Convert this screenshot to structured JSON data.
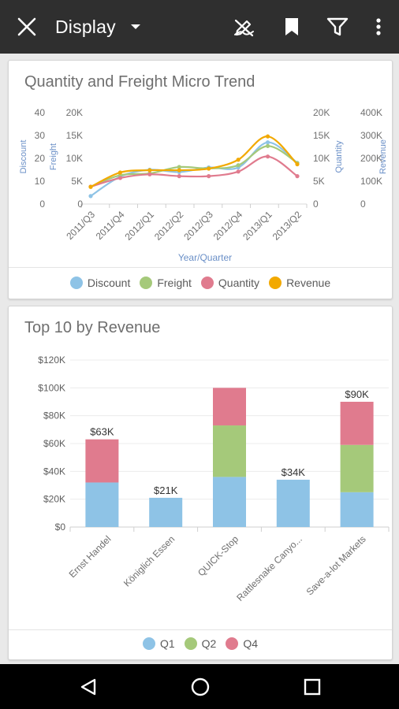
{
  "toolbar": {
    "title": "Display"
  },
  "chart_data": [
    {
      "type": "line",
      "title": "Quantity and Freight Micro Trend",
      "xlabel": "Year/Quarter",
      "categories": [
        "2011/Q3",
        "2011/Q4",
        "2012/Q1",
        "2012/Q2",
        "2012/Q3",
        "2012/Q4",
        "2013/Q1",
        "2013/Q2"
      ],
      "left_axes": [
        {
          "label": "Discount",
          "ticks": [
            "40",
            "30",
            "20",
            "10",
            "0"
          ],
          "range": [
            0,
            40
          ]
        },
        {
          "label": "Freight",
          "ticks": [
            "20K",
            "15K",
            "10K",
            "5K",
            "0"
          ],
          "range": [
            0,
            20000
          ]
        }
      ],
      "right_axes": [
        {
          "label": "Quantity",
          "ticks": [
            "20K",
            "15K",
            "10K",
            "5K",
            "0"
          ],
          "range": [
            0,
            20000
          ]
        },
        {
          "label": "Revenue",
          "ticks": [
            "400K",
            "300K",
            "200K",
            "100K",
            "0"
          ],
          "range": [
            0,
            400000
          ]
        }
      ],
      "series": [
        {
          "name": "Discount",
          "color": "#8ec3e6",
          "axis": "Discount",
          "values": [
            3.5,
            12,
            15,
            14,
            16,
            16,
            27,
            18
          ]
        },
        {
          "name": "Freight",
          "color": "#a5c97a",
          "axis": "Freight",
          "values": [
            3800,
            6300,
            6700,
            8100,
            7800,
            8500,
            12700,
            9000
          ]
        },
        {
          "name": "Quantity",
          "color": "#e07b8e",
          "axis": "Quantity",
          "values": [
            3800,
            5700,
            6500,
            6100,
            6100,
            7100,
            10400,
            6100
          ]
        },
        {
          "name": "Revenue",
          "color": "#f2a900",
          "axis": "Revenue",
          "values": [
            75000,
            138000,
            148000,
            148000,
            155000,
            194000,
            296000,
            174000
          ]
        }
      ],
      "legend": [
        "Discount",
        "Freight",
        "Quantity",
        "Revenue"
      ],
      "legend_position": "bottom"
    },
    {
      "type": "bar",
      "stacked": true,
      "title": "Top 10 by Revenue",
      "categories": [
        "Ernst Handel",
        "Königlich Essen",
        "QUICK-Stop",
        "Rattlesnake Canyo...",
        "Save-a-lot Markets"
      ],
      "y_ticks": [
        "$120K",
        "$100K",
        "$80K",
        "$60K",
        "$40K",
        "$20K",
        "$0"
      ],
      "ylim": [
        0,
        120000
      ],
      "series": [
        {
          "name": "Q1",
          "color": "#8ec3e6",
          "values": [
            32000,
            21000,
            36000,
            34000,
            25000
          ]
        },
        {
          "name": "Q2",
          "color": "#a5c97a",
          "values": [
            0,
            0,
            37000,
            0,
            34000
          ]
        },
        {
          "name": "Q4",
          "color": "#e07b8e",
          "values": [
            31000,
            0,
            27000,
            0,
            31000
          ]
        }
      ],
      "total_labels": [
        "$63K",
        "$21K",
        "",
        "$34K",
        "$90K"
      ],
      "legend": [
        "Q1",
        "Q2",
        "Q4"
      ],
      "legend_position": "bottom"
    }
  ]
}
